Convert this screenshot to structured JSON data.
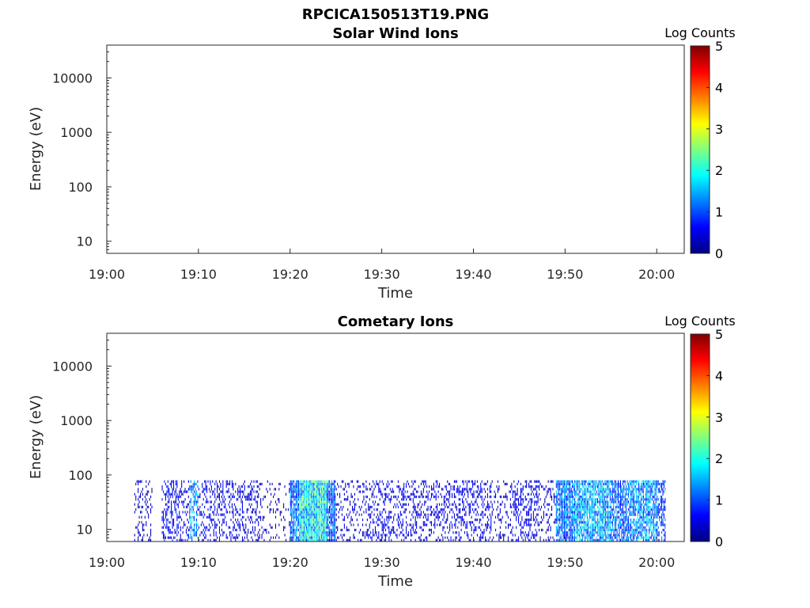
{
  "figure_title": "RPCICA150513T19.PNG",
  "colorscale": [
    "#00007f",
    "#0000ff",
    "#007fff",
    "#00ffff",
    "#7fff7f",
    "#ffff00",
    "#ff7f00",
    "#ff0000",
    "#7f0000"
  ],
  "chart_data": [
    {
      "type": "heatmap",
      "title": "Solar Wind Ions",
      "xlabel": "Time",
      "ylabel": "Energy (eV)",
      "xticks": [
        "19:00",
        "19:10",
        "19:20",
        "19:30",
        "19:40",
        "19:50",
        "20:00"
      ],
      "xlim": [
        "19:00",
        "20:03"
      ],
      "yscale": "log",
      "yticks": [
        10,
        100,
        1000,
        10000
      ],
      "ytick_labels": [
        "10",
        "100",
        "1000",
        "10000"
      ],
      "ylim": [
        6,
        40000
      ],
      "colorbar": {
        "label": "Log Counts",
        "range": [
          0,
          5
        ],
        "ticks": [
          "0",
          "1",
          "2",
          "3",
          "4",
          "5"
        ]
      },
      "data": []
    },
    {
      "type": "heatmap",
      "title": "Cometary Ions",
      "xlabel": "Time",
      "ylabel": "Energy (eV)",
      "xticks": [
        "19:00",
        "19:10",
        "19:20",
        "19:30",
        "19:40",
        "19:50",
        "20:00"
      ],
      "xlim": [
        "19:00",
        "20:03"
      ],
      "yscale": "log",
      "yticks": [
        10,
        100,
        1000,
        10000
      ],
      "ytick_labels": [
        "10",
        "100",
        "1000",
        "10000"
      ],
      "ylim": [
        6,
        40000
      ],
      "colorbar": {
        "label": "Log Counts",
        "range": [
          0,
          5
        ],
        "ticks": [
          "0",
          "1",
          "2",
          "3",
          "4",
          "5"
        ]
      },
      "energy_range_eV": [
        6,
        80
      ],
      "activity": [
        {
          "start": "19:03",
          "end": "19:05",
          "level": 0.4,
          "density": 0.25
        },
        {
          "start": "19:06",
          "end": "19:08",
          "level": 0.7,
          "density": 0.45
        },
        {
          "start": "19:08",
          "end": "19:09",
          "level": 0.5,
          "density": 0.35
        },
        {
          "start": "19:09",
          "end": "19:10",
          "level": 1.6,
          "density": 0.6
        },
        {
          "start": "19:10",
          "end": "19:12",
          "level": 0.6,
          "density": 0.35
        },
        {
          "start": "19:12",
          "end": "19:15",
          "level": 0.6,
          "density": 0.35
        },
        {
          "start": "19:15",
          "end": "19:17",
          "level": 0.5,
          "density": 0.3
        },
        {
          "start": "19:17",
          "end": "19:20",
          "level": 0.3,
          "density": 0.15
        },
        {
          "start": "19:20",
          "end": "19:21",
          "level": 1.3,
          "density": 0.85
        },
        {
          "start": "19:21",
          "end": "19:24",
          "level": 2.0,
          "density": 1.0
        },
        {
          "start": "19:24",
          "end": "19:25",
          "level": 1.2,
          "density": 0.85
        },
        {
          "start": "19:25",
          "end": "19:29",
          "level": 0.5,
          "density": 0.25
        },
        {
          "start": "19:29",
          "end": "19:33",
          "level": 0.6,
          "density": 0.35
        },
        {
          "start": "19:33",
          "end": "19:38",
          "level": 0.5,
          "density": 0.3
        },
        {
          "start": "19:38",
          "end": "19:42",
          "level": 0.6,
          "density": 0.35
        },
        {
          "start": "19:42",
          "end": "19:44",
          "level": 0.4,
          "density": 0.2
        },
        {
          "start": "19:44",
          "end": "19:47",
          "level": 0.6,
          "density": 0.35
        },
        {
          "start": "19:47",
          "end": "19:49",
          "level": 0.4,
          "density": 0.25
        },
        {
          "start": "19:49",
          "end": "19:51",
          "level": 1.3,
          "density": 0.8
        },
        {
          "start": "19:51",
          "end": "19:55",
          "level": 1.6,
          "density": 0.85
        },
        {
          "start": "19:55",
          "end": "19:57",
          "level": 1.2,
          "density": 0.75
        },
        {
          "start": "19:57",
          "end": "20:00",
          "level": 1.5,
          "density": 0.8
        },
        {
          "start": "20:00",
          "end": "20:01",
          "level": 1.0,
          "density": 0.6
        }
      ]
    }
  ]
}
